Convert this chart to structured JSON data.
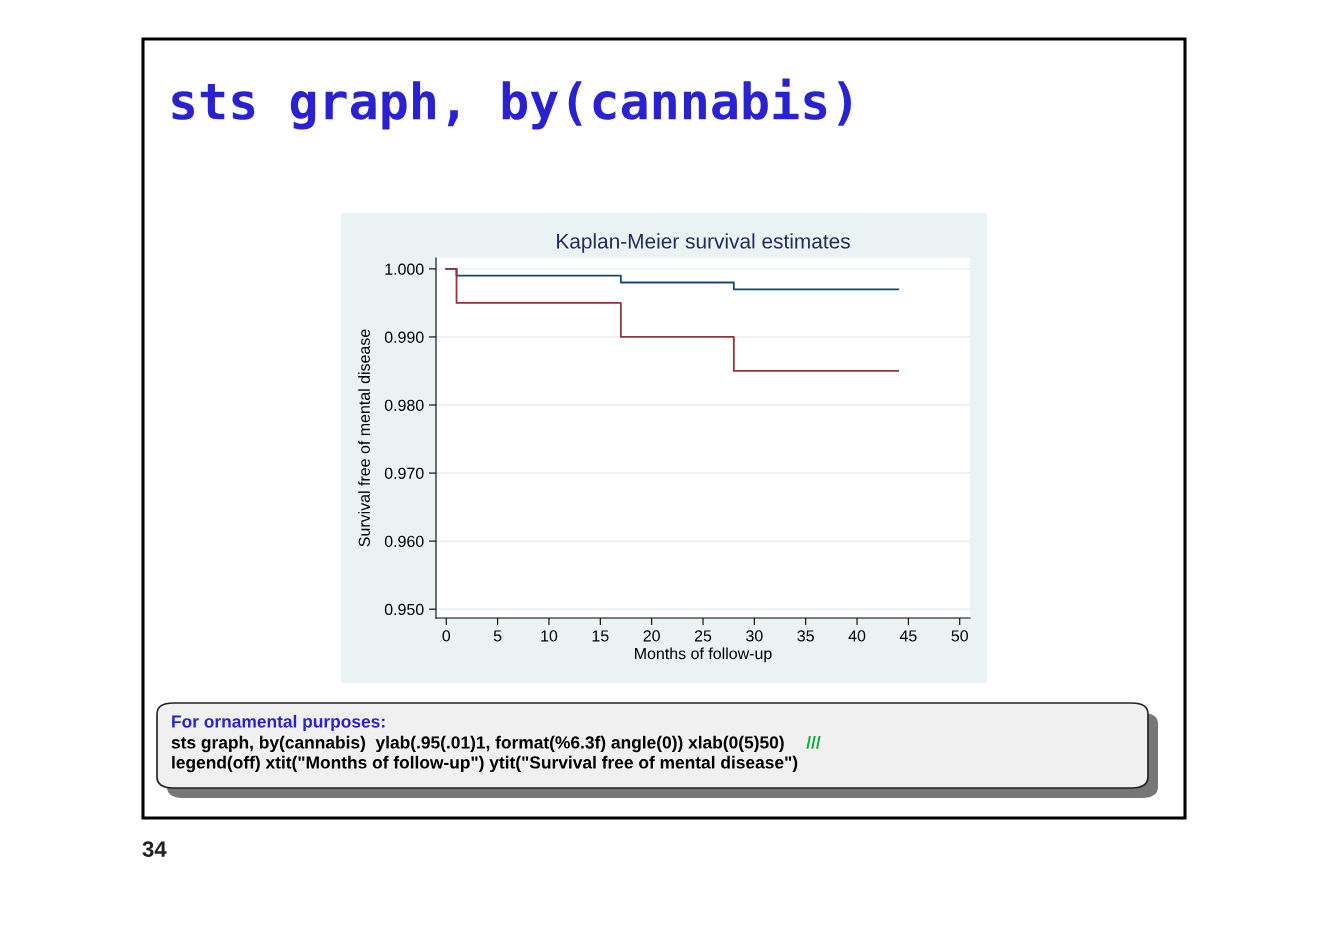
{
  "chart_data": {
    "type": "step",
    "title": "Kaplan-Meier survival estimates",
    "xlabel": "Months of follow-up",
    "ylabel": "Survival free of mental disease",
    "series": [
      {
        "color": "#1a476f",
        "x": [
          0,
          1,
          17,
          28,
          44
        ],
        "values": [
          1.0,
          0.999,
          0.998,
          0.997,
          0.997
        ]
      },
      {
        "color": "#90353b",
        "x": [
          0,
          1,
          17,
          28,
          44
        ],
        "values": [
          1.0,
          0.995,
          0.99,
          0.985,
          0.985
        ]
      }
    ],
    "xlim": [
      -1,
      51
    ],
    "xticks": [
      0,
      5,
      10,
      15,
      20,
      25,
      30,
      35,
      40,
      45,
      50
    ],
    "ylim": [
      0.9487,
      1.0016
    ],
    "yticks": [
      {
        "value": 0.95,
        "label": "0.950"
      },
      {
        "value": 0.96,
        "label": "0.960"
      },
      {
        "value": 0.97,
        "label": "0.970"
      },
      {
        "value": 0.98,
        "label": "0.980"
      },
      {
        "value": 0.99,
        "label": "0.990"
      },
      {
        "value": 1.0,
        "label": "1.000"
      }
    ],
    "grid": "y",
    "legend": false,
    "annotations": [
      "sts graph, by(cannabis)",
      "For ornamental purposes:",
      "sts graph, by(cannabis)  ylab(.95(.01)1, format(%6.3f) angle(0)) xlab(0(5)50)",
      "///",
      "legend(off) xtit(\"Months of follow-up\") ytit(\"Survival free of mental disease\")",
      "34"
    ]
  }
}
